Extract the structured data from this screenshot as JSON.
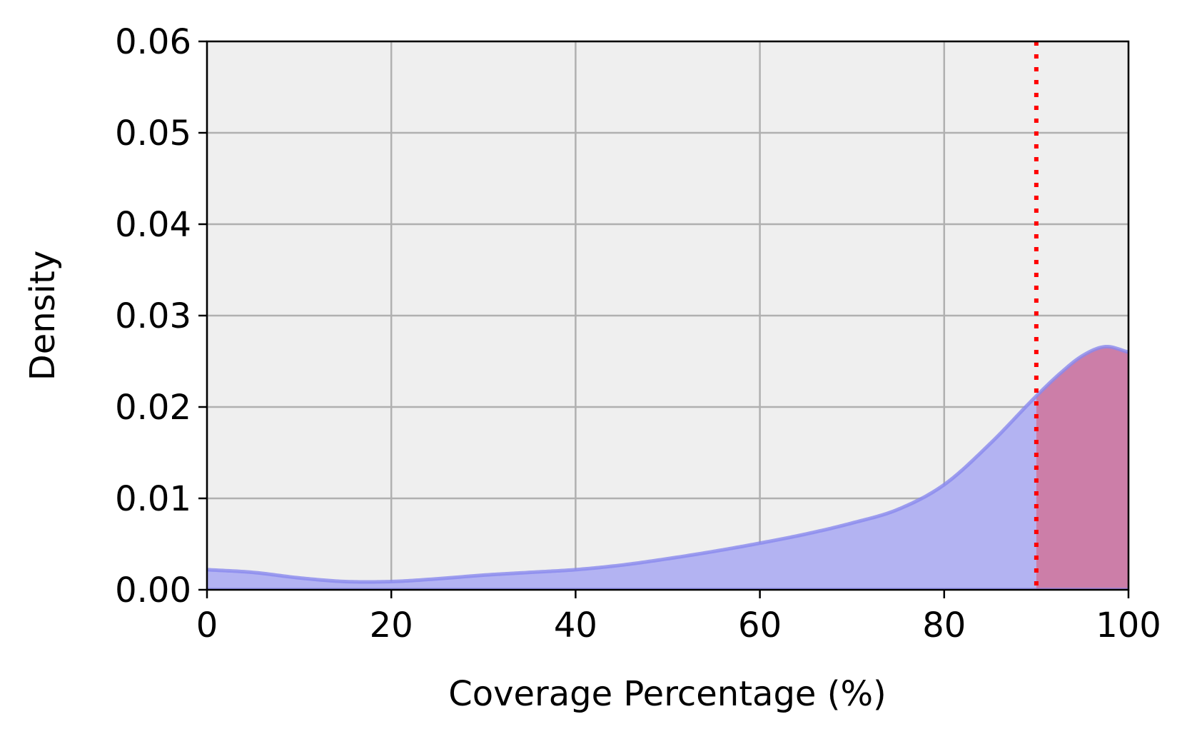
{
  "chart_data": {
    "type": "area",
    "xlabel": "Coverage Percentage (%)",
    "ylabel": "Density",
    "xlim": [
      0,
      100
    ],
    "ylim": [
      0,
      0.06
    ],
    "xticks": [
      0,
      20,
      40,
      60,
      80,
      100
    ],
    "xtick_labels": [
      "0",
      "20",
      "40",
      "60",
      "80",
      "100"
    ],
    "yticks": [
      0,
      0.01,
      0.02,
      0.03,
      0.04,
      0.05,
      0.06
    ],
    "ytick_labels": [
      "0.00",
      "0.01",
      "0.02",
      "0.03",
      "0.04",
      "0.05",
      "0.06"
    ],
    "grid": true,
    "series": [
      {
        "x": [
          0,
          5,
          10,
          15,
          20,
          25,
          30,
          35,
          40,
          45,
          50,
          55,
          60,
          65,
          70,
          75,
          80,
          85,
          90,
          92.5,
          95,
          97.5,
          100
        ],
        "y": [
          0.0022,
          0.0019,
          0.0013,
          0.0009,
          0.0009,
          0.0012,
          0.0016,
          0.0019,
          0.0022,
          0.0027,
          0.0034,
          0.0042,
          0.0051,
          0.0061,
          0.0073,
          0.0088,
          0.0115,
          0.016,
          0.0212,
          0.0236,
          0.0256,
          0.0266,
          0.026
        ]
      }
    ],
    "threshold": {
      "x": 90
    },
    "colors": {
      "fill": "#b3b3f2",
      "line": "#8888ee",
      "highlight_fill": "#cc7ea8",
      "threshold_line": "#ff0000",
      "plot_background": "#efefef",
      "grid": "#b0b0b0"
    }
  }
}
